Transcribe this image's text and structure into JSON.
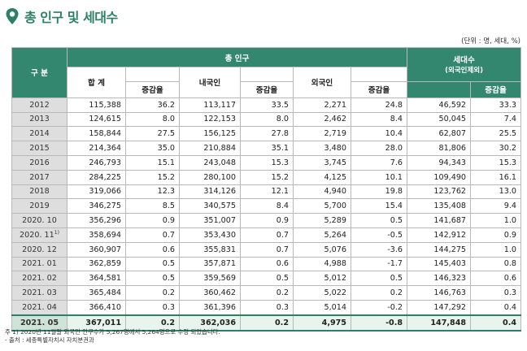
{
  "header": {
    "title": "총 인구 및 세대수",
    "icon": "location-pin-icon",
    "accent_color": "#2d7f67"
  },
  "unit_label": "(단위 : 명, 세대, %)",
  "table": {
    "col_group": "구 분",
    "total_population": "총 인구",
    "total": "합 계",
    "change_rate": "증감율",
    "korean": "내국인",
    "foreign": "외국인",
    "households": "세대수",
    "households_note": "(외국인제외)",
    "rows": [
      {
        "year": "2012",
        "total": "115,388",
        "total_rate": "36.2",
        "kor": "113,117",
        "kor_rate": "33.5",
        "for": "2,271",
        "for_rate": "24.8",
        "hh": "46,592",
        "hh_rate": "33.3"
      },
      {
        "year": "2013",
        "total": "124,615",
        "total_rate": "8.0",
        "kor": "122,153",
        "kor_rate": "8.0",
        "for": "2,462",
        "for_rate": "8.4",
        "hh": "50,045",
        "hh_rate": "7.4"
      },
      {
        "year": "2014",
        "total": "158,844",
        "total_rate": "27.5",
        "kor": "156,125",
        "kor_rate": "27.8",
        "for": "2,719",
        "for_rate": "10.4",
        "hh": "62,807",
        "hh_rate": "25.5"
      },
      {
        "year": "2015",
        "total": "214,364",
        "total_rate": "35.0",
        "kor": "210,884",
        "kor_rate": "35.1",
        "for": "3,480",
        "for_rate": "28.0",
        "hh": "81,806",
        "hh_rate": "30.2"
      },
      {
        "year": "2016",
        "total": "246,793",
        "total_rate": "15.1",
        "kor": "243,048",
        "kor_rate": "15.3",
        "for": "3,745",
        "for_rate": "7.6",
        "hh": "94,343",
        "hh_rate": "15.3"
      },
      {
        "year": "2017",
        "total": "284,225",
        "total_rate": "15.2",
        "kor": "280,100",
        "kor_rate": "15.2",
        "for": "4,125",
        "for_rate": "10.1",
        "hh": "109,490",
        "hh_rate": "16.1"
      },
      {
        "year": "2018",
        "total": "319,066",
        "total_rate": "12.3",
        "kor": "314,126",
        "kor_rate": "12.1",
        "for": "4,940",
        "for_rate": "19.8",
        "hh": "123,762",
        "hh_rate": "13.0"
      },
      {
        "year": "2019",
        "total": "346,275",
        "total_rate": "8.5",
        "kor": "340,575",
        "kor_rate": "8.4",
        "for": "5,700",
        "for_rate": "15.4",
        "hh": "135,408",
        "hh_rate": "9.4"
      },
      {
        "year": "2020. 10",
        "total": "356,296",
        "total_rate": "0.9",
        "kor": "351,007",
        "kor_rate": "0.9",
        "for": "5,289",
        "for_rate": "0.5",
        "hh": "141,687",
        "hh_rate": "1.0"
      },
      {
        "year": "2020. 11",
        "year_sup": "1)",
        "total": "358,694",
        "total_rate": "0.7",
        "kor": "353,430",
        "kor_rate": "0.7",
        "for": "5,264",
        "for_rate": "-0.5",
        "hh": "142,912",
        "hh_rate": "0.9"
      },
      {
        "year": "2020. 12",
        "total": "360,907",
        "total_rate": "0.6",
        "kor": "355,831",
        "kor_rate": "0.7",
        "for": "5,076",
        "for_rate": "-3.6",
        "hh": "144,275",
        "hh_rate": "1.0"
      },
      {
        "year": "2021. 01",
        "total": "362,859",
        "total_rate": "0.5",
        "kor": "357,871",
        "kor_rate": "0.6",
        "for": "4,988",
        "for_rate": "-1.7",
        "hh": "145,403",
        "hh_rate": "0.8"
      },
      {
        "year": "2021. 02",
        "total": "364,581",
        "total_rate": "0.5",
        "kor": "359,569",
        "kor_rate": "0.5",
        "for": "5,012",
        "for_rate": "0.5",
        "hh": "146,323",
        "hh_rate": "0.6"
      },
      {
        "year": "2021. 03",
        "total": "365,484",
        "total_rate": "0.2",
        "kor": "360,462",
        "kor_rate": "0.2",
        "for": "5,022",
        "for_rate": "0.2",
        "hh": "146,763",
        "hh_rate": "0.3"
      },
      {
        "year": "2021. 04",
        "total": "366,410",
        "total_rate": "0.3",
        "kor": "361,396",
        "kor_rate": "0.3",
        "for": "5,014",
        "for_rate": "-0.2",
        "hh": "147,292",
        "hh_rate": "0.4"
      },
      {
        "year": "2021. 05",
        "total": "367,011",
        "total_rate": "0.2",
        "kor": "362,036",
        "kor_rate": "0.2",
        "for": "4,975",
        "for_rate": "-0.8",
        "hh": "147,848",
        "hh_rate": "0.4"
      }
    ]
  },
  "notes": {
    "note1": "주 1) 2020년 11월말 외국인 인구수가 5,267명에서 5,264명으로 수정 되었습니다.",
    "source": "- 출처 : 세종특별자치시 자치분권과"
  }
}
